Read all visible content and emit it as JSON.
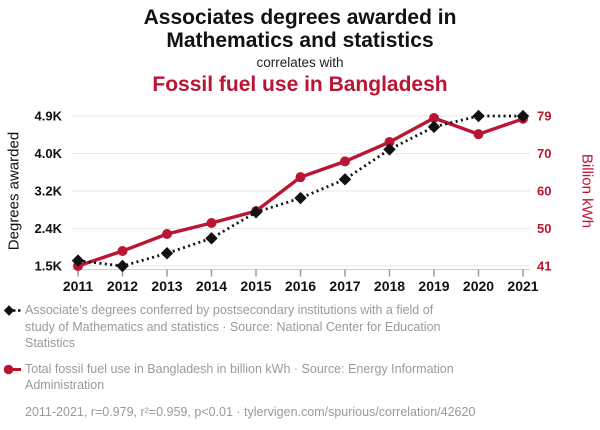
{
  "header": {
    "title_line1": "Associates degrees awarded in",
    "title_line2": "Mathematics and statistics",
    "connector": "correlates with",
    "subtitle": "Fossil fuel use in Bangladesh"
  },
  "colors": {
    "accent_red": "#ba1533",
    "text_black": "#111111",
    "muted_gray": "#9a9a9a",
    "gridline_gray": "#e7e7e7",
    "axis_gray": "#cfcfcf"
  },
  "chart_data": {
    "type": "line",
    "x": [
      2011,
      2012,
      2013,
      2014,
      2015,
      2016,
      2017,
      2018,
      2019,
      2020,
      2021
    ],
    "series": [
      {
        "name": "Associate's degrees in Mathematics and statistics",
        "axis": "left",
        "color": "#111111",
        "style": "dotted",
        "marker": "diamond",
        "values": [
          1601,
          1477,
          1768,
          2109,
          2702,
          3028,
          3455,
          4138,
          4653,
          4901,
          4899
        ]
      },
      {
        "name": "Total fossil fuel use in Bangladesh",
        "axis": "right",
        "color": "#ba1533",
        "style": "solid",
        "marker": "circle",
        "values": [
          41,
          44.8,
          49.1,
          51.9,
          54.9,
          63.5,
          67.5,
          72.4,
          78.5,
          74.4,
          78.3
        ]
      }
    ],
    "left_axis": {
      "label": "Degrees awarded",
      "ticks": [
        "1.5K",
        "2.4K",
        "3.2K",
        "4.0K",
        "4.9K"
      ],
      "range": [
        1477,
        4901
      ]
    },
    "right_axis": {
      "label": "Billion kWh",
      "ticks": [
        "41",
        "50",
        "60",
        "70",
        "79"
      ],
      "range": [
        41,
        79
      ]
    },
    "grid": true,
    "legend_position": "bottom"
  },
  "legend": {
    "series1": "Associate's degrees conferred by postsecondary institutions with a field of study of Mathematics and statistics · Source: National Center for Education Statistics",
    "series2": "Total fossil fuel use in Bangladesh in billion kWh · Source: Energy Information Administration"
  },
  "footer": {
    "stats": "2011-2021, r=0.979, r²=0.959, p<0.01 · tylervigen.com/spurious/correlation/42620"
  }
}
